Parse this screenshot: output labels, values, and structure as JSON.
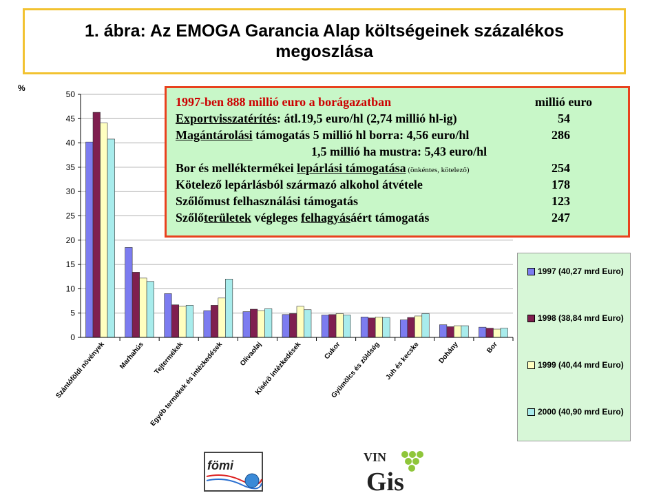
{
  "title": "1. ábra: Az EMOGA Garancia Alap költségeinek százalékos megoszlása",
  "chart_data": {
    "type": "bar",
    "ylabel": "%",
    "ylim": [
      0,
      50
    ],
    "yticks": [
      0,
      5,
      10,
      15,
      20,
      25,
      30,
      35,
      40,
      45,
      50
    ],
    "grid": true,
    "legend_position": "right",
    "categories": [
      "Szántóföldi növények",
      "Marhahús",
      "Tejtermékek",
      "Egyéb termékek és intézkedések",
      "Olivaolaj",
      "Kísérő intézkedések",
      "Cukor",
      "Gyümölcs és zöldség",
      "Juh és kecske",
      "Dohány",
      "Bor"
    ],
    "series": [
      {
        "name": "1997 (40,27 mrd Euro)",
        "color": "#7c7cf0",
        "values": [
          40.2,
          18.5,
          9.0,
          5.5,
          5.3,
          4.7,
          4.6,
          4.2,
          3.6,
          2.6,
          2.1
        ]
      },
      {
        "name": "1998 (38,84 mrd Euro)",
        "color": "#7f1f4f",
        "values": [
          46.3,
          13.4,
          6.7,
          6.6,
          5.8,
          4.9,
          4.7,
          4.0,
          4.1,
          2.2,
          1.9
        ]
      },
      {
        "name": "1999 (40,44 mrd Euro)",
        "color": "#ffffc0",
        "values": [
          44.1,
          12.2,
          6.4,
          8.1,
          5.5,
          6.4,
          4.9,
          4.2,
          4.4,
          2.4,
          1.7
        ]
      },
      {
        "name": "2000 (40,90 mrd Euro)",
        "color": "#a8ecec",
        "values": [
          40.8,
          11.5,
          6.6,
          12.0,
          5.9,
          5.7,
          4.6,
          4.1,
          4.9,
          2.4,
          1.9
        ]
      }
    ]
  },
  "info_box": {
    "heading": "1997-ben 888 millió euro a borágazatban",
    "unit": "millió euro",
    "rows": [
      {
        "label": "Exportvisszatérítés",
        "text": ": átl.19,5 euro/hl (2,74 millió hl-ig)",
        "value": "54"
      },
      {
        "label": "Magántárolási",
        "text": " támogatás 5 millió hl borra: 4,56 euro/hl",
        "value": "286"
      },
      {
        "label": "",
        "text": "1,5 millió ha mustra: 5,43 euro/hl",
        "value": ""
      },
      {
        "label": "Bor és melléktermékei ",
        "underlined": "lepárlási támogatása",
        "note": " (önkéntes, kötelező)",
        "value": "254"
      },
      {
        "label": "Kötelező lepárlásból származó alkohol átvétele",
        "value": "178"
      },
      {
        "label": "Szőlőmust felhasználási támogatás",
        "value": "123"
      },
      {
        "label": "Szőlő",
        "underlined1": "területek",
        "mid": " végleges ",
        "underlined2": "felhagyás",
        "tail": "áért támogatás",
        "value": "247"
      }
    ]
  },
  "logos": {
    "fomi": "fömi",
    "vingis_top": "VIN",
    "vingis_bottom": "Gis"
  }
}
